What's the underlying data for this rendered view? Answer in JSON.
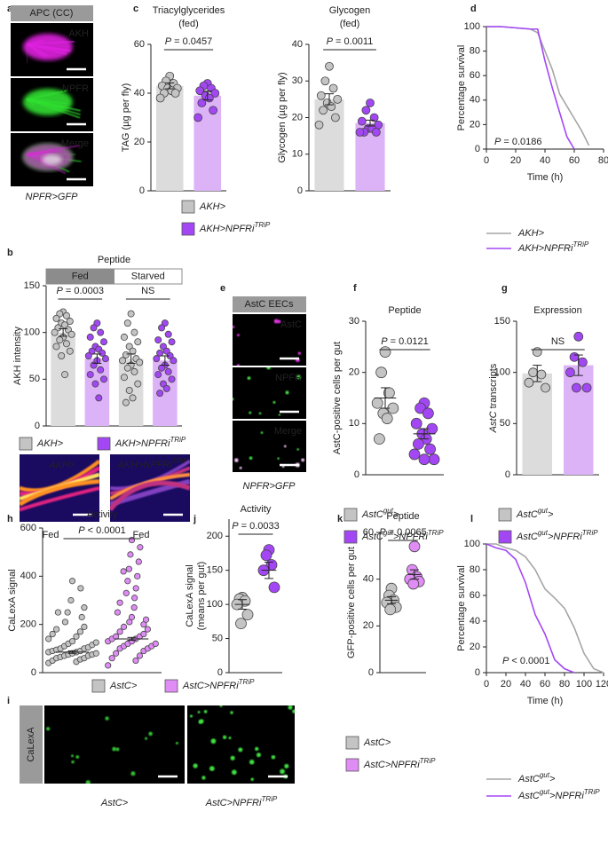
{
  "image_panels": [
    {
      "panel": "a",
      "header": "APC (CC)",
      "channels": [
        "AKH",
        "NPFR",
        "Merge"
      ],
      "caption": "NPFR>GFP"
    },
    {
      "labels": [
        "AKH>",
        [
          "AKH>NPFRi",
          {
            "sup": "TRiP"
          }
        ]
      ],
      "captions": [
        "Fed",
        "Fed"
      ]
    },
    {
      "panel": "e",
      "header": "AstC EECs",
      "channels": [
        "AstC",
        "NPFR",
        "Merge"
      ],
      "caption": "NPFR>GFP"
    },
    {
      "panel": "i",
      "side_label": "CaLexA",
      "captions": [
        "AstC>",
        [
          "AstC>NPFRi",
          {
            "sup": "TRiP"
          }
        ]
      ]
    }
  ],
  "chart_data": [
    {
      "panel": "c",
      "type": "bar",
      "title": [
        "Triacylglycerides",
        "(fed)"
      ],
      "ylabel": "TAG (µg per fly)",
      "ylim": [
        0,
        60
      ],
      "yticks": [
        0,
        20,
        40,
        60
      ],
      "categories": [
        null
      ],
      "comparisons": [
        [
          {
            "i": "P"
          },
          " = 0.0457"
        ]
      ],
      "series": [
        {
          "name": "AKH>",
          "color": "#c4c4c4",
          "bar_color": "#dcdcdc",
          "values": [
            43
          ],
          "errors": [
            1.2
          ],
          "points": [
            [
              47,
              45,
              44,
              43,
              42,
              42,
              41,
              40,
              40,
              38
            ]
          ]
        },
        {
          "name": [
            "AKH>NPFRi",
            {
              "sup": "TRiP"
            }
          ],
          "color": "#a347f5",
          "bar_color": "#ddb3f8",
          "values": [
            39
          ],
          "errors": [
            1.8
          ],
          "points": [
            [
              44,
              43,
              42,
              41,
              40,
              39,
              38,
              36,
              33,
              30
            ]
          ]
        }
      ]
    },
    {
      "type": "bar",
      "title": [
        "Glycogen",
        "(fed)"
      ],
      "ylabel": "Glycogen (µg per fly)",
      "ylim": [
        0,
        40
      ],
      "yticks": [
        0,
        10,
        20,
        30,
        40
      ],
      "categories": [
        null
      ],
      "comparisons": [
        [
          {
            "i": "P"
          },
          " = 0.0011"
        ]
      ],
      "series": [
        {
          "color": "#c4c4c4",
          "bar_color": "#dcdcdc",
          "values": [
            25
          ],
          "errors": [
            1.5
          ],
          "points": [
            [
              34,
              30,
              28,
              26,
              25,
              24,
              23,
              22,
              20,
              18
            ]
          ]
        },
        {
          "color": "#a347f5",
          "bar_color": "#ddb3f8",
          "values": [
            18.5
          ],
          "errors": [
            0.8
          ],
          "points": [
            [
              24,
              22,
              20,
              19,
              18,
              17,
              17,
              16,
              16,
              16
            ]
          ]
        }
      ]
    },
    {
      "panel": "d",
      "type": "line",
      "ylabel": "Percentage survival",
      "xlabel": "Time (h)",
      "xlim": [
        0,
        80
      ],
      "xticks": [
        0,
        20,
        40,
        60,
        80
      ],
      "ylim": [
        0,
        100
      ],
      "yticks": [
        0,
        20,
        40,
        60,
        80,
        100
      ],
      "annotation": [
        {
          "i": "P"
        },
        " = 0.0186"
      ],
      "x": [
        0,
        10,
        20,
        30,
        35,
        40,
        45,
        50,
        55,
        60,
        65,
        70
      ],
      "series": [
        {
          "name": "AKH>",
          "color": "#a6a6a6",
          "values": [
            100,
            100,
            99,
            98,
            95,
            80,
            65,
            45,
            35,
            25,
            15,
            3
          ]
        },
        {
          "name": [
            "AKH>NPFRi",
            {
              "sup": "TRiP"
            }
          ],
          "color": "#a347f5",
          "values": [
            100,
            100,
            99,
            98,
            98,
            72,
            50,
            30,
            10,
            0,
            null,
            null
          ]
        }
      ]
    },
    {
      "panel": "b",
      "type": "bar",
      "title": "Peptide",
      "ylabel": "AKH intensity",
      "ylim": [
        0,
        150
      ],
      "yticks": [
        0,
        50,
        100,
        150
      ],
      "categories": [
        "Fed",
        "Starved"
      ],
      "comparisons": [
        [
          {
            "i": "P"
          },
          " = 0.0003"
        ],
        "NS"
      ],
      "series": [
        {
          "name": "AKH>",
          "color": "#c4c4c4",
          "bar_color": "#dcdcdc",
          "values": [
            100,
            72
          ],
          "errors": [
            4,
            5
          ],
          "points": [
            [
              122,
              120,
              118,
              115,
              112,
              110,
              108,
              105,
              103,
              100,
              98,
              95,
              92,
              88,
              85,
              80,
              75,
              55
            ],
            [
              120,
              110,
              100,
              95,
              90,
              85,
              80,
              76,
              72,
              70,
              68,
              65,
              62,
              58,
              52,
              45,
              38,
              30,
              25
            ]
          ]
        },
        {
          "name": [
            "AKH>NPFRi",
            {
              "sup": "TRiP"
            }
          ],
          "color": "#a347f5",
          "bar_color": "#ddb3f8",
          "values": [
            72,
            70
          ],
          "errors": [
            5,
            5
          ],
          "points": [
            [
              110,
              105,
              100,
              95,
              90,
              85,
              82,
              80,
              78,
              75,
              72,
              70,
              65,
              60,
              55,
              50,
              45,
              30
            ],
            [
              110,
              105,
              98,
              92,
              90,
              85,
              80,
              78,
              75,
              72,
              70,
              65,
              62,
              58,
              55,
              50,
              45,
              40,
              35
            ]
          ]
        }
      ]
    },
    {
      "panel": "f",
      "type": "strip",
      "title": "Peptide",
      "ylabel": "AstC-positive cells per gut",
      "ylim": [
        0,
        30
      ],
      "yticks": [
        0,
        10,
        20,
        30
      ],
      "categories": [
        null
      ],
      "comparisons": [
        [
          {
            "i": "P"
          },
          " = 0.0121"
        ]
      ],
      "series": [
        {
          "name": [
            "AstC",
            {
              "sup": "gut"
            },
            ">"
          ],
          "color": "#c4c4c4",
          "values": [
            15
          ],
          "errors": [
            2
          ],
          "points": [
            [
              24,
              20,
              16,
              14,
              13,
              12,
              11,
              7
            ]
          ]
        },
        {
          "name": [
            "AstC",
            {
              "sup": "gut"
            },
            ">NPFRi",
            {
              "sup": "TRiP"
            }
          ],
          "color": "#a347f5",
          "values": [
            8
          ],
          "errors": [
            1
          ],
          "points": [
            [
              14,
              13,
              12,
              10,
              9,
              8,
              7,
              6,
              5,
              4,
              3,
              3
            ]
          ]
        }
      ]
    },
    {
      "panel": "g",
      "type": "bar",
      "title": "Expression",
      "ylabel": [
        {
          "i": "AstC"
        },
        " transcripts"
      ],
      "ylim": [
        0,
        150
      ],
      "yticks": [
        0,
        50,
        100,
        150
      ],
      "categories": [
        null
      ],
      "comparisons": [
        "NS"
      ],
      "series": [
        {
          "name": [
            "AstC",
            {
              "sup": "gut"
            },
            ">"
          ],
          "color": "#c4c4c4",
          "bar_color": "#dcdcdc",
          "values": [
            99
          ],
          "errors": [
            8
          ],
          "points": [
            [
              120,
              100,
              98,
              90,
              85
            ]
          ]
        },
        {
          "name": [
            "AstC",
            {
              "sup": "gut"
            },
            ">NPFRi",
            {
              "sup": "TRiP"
            }
          ],
          "color": "#a347f5",
          "bar_color": "#ddb3f8",
          "values": [
            107
          ],
          "errors": [
            10
          ],
          "points": [
            [
              135,
              115,
              110,
              100,
              85,
              85
            ]
          ]
        }
      ]
    },
    {
      "panel": "h",
      "type": "strip",
      "title": "Activity",
      "ylabel": "CaLexA signal",
      "ylim": [
        0,
        600
      ],
      "yticks": [
        0,
        200,
        400,
        600
      ],
      "categories": [
        null
      ],
      "comparisons": [
        [
          {
            "i": "P"
          },
          " < 0.0001"
        ]
      ],
      "series": [
        {
          "name": "AstC>",
          "color": "#c4c4c4",
          "values": [
            85
          ],
          "errors": [
            5
          ],
          "points": [
            [
              40,
              45,
              50,
              55,
              60,
              60,
              65,
              70,
              70,
              75,
              75,
              80,
              80,
              85,
              85,
              90,
              90,
              95,
              100,
              100,
              105,
              110,
              115,
              120,
              125,
              130,
              140,
              150,
              160,
              170,
              180,
              190,
              210,
              230,
              250,
              270,
              300,
              350,
              380,
              250
            ]
          ]
        },
        {
          "name": [
            "AstC>NPFRi",
            {
              "sup": "TRiP"
            }
          ],
          "color": "#df8cf5",
          "values": [
            140
          ],
          "errors": [
            6
          ],
          "points": [
            [
              30,
              50,
              60,
              70,
              80,
              90,
              100,
              100,
              110,
              110,
              120,
              120,
              130,
              130,
              140,
              140,
              150,
              150,
              160,
              170,
              180,
              190,
              200,
              210,
              220,
              230,
              250,
              270,
              290,
              310,
              330,
              350,
              380,
              400,
              430,
              460,
              490,
              520,
              550,
              420
            ]
          ]
        }
      ]
    },
    {
      "panel": "j",
      "type": "strip",
      "title": "Activity",
      "ylabel": [
        "CaLexA signal",
        "(means per gut)"
      ],
      "ylim": [
        0,
        225
      ],
      "yticks": [
        0,
        50,
        100,
        150,
        200
      ],
      "categories": [
        null
      ],
      "comparisons": [
        [
          {
            "i": "P"
          },
          " = 0.0033"
        ]
      ],
      "series": [
        {
          "color": "#c4c4c4",
          "values": [
            100
          ],
          "errors": [
            7
          ],
          "points": [
            [
              110,
              108,
              105,
              100,
              85,
              72
            ]
          ]
        },
        {
          "color": "#a347f5",
          "values": [
            150
          ],
          "errors": [
            12
          ],
          "points": [
            [
              180,
              172,
              158,
              150,
              125
            ]
          ]
        }
      ]
    },
    {
      "panel": "k",
      "type": "strip",
      "title": "Peptide",
      "ylabel": "GFP-positive cells per gut",
      "ylim": [
        0,
        60
      ],
      "yticks": [
        0,
        20,
        40,
        60
      ],
      "categories": [
        null
      ],
      "comparisons": [
        [
          {
            "i": "P"
          },
          " = 0.0065"
        ]
      ],
      "series": [
        {
          "name": "AstC>",
          "color": "#c4c4c4",
          "values": [
            31
          ],
          "errors": [
            1.5
          ],
          "points": [
            [
              36,
              33,
              31,
              30,
              28,
              27
            ]
          ]
        },
        {
          "name": [
            "AstC>NPFRi",
            {
              "sup": "TRiP"
            }
          ],
          "color": "#df8cf5",
          "values": [
            42
          ],
          "errors": [
            2
          ],
          "points": [
            [
              54,
              44,
              41,
              40,
              39,
              38
            ]
          ]
        }
      ]
    },
    {
      "panel": "l",
      "type": "line",
      "ylabel": "Percentage survival",
      "xlabel": "Time (h)",
      "xlim": [
        0,
        120
      ],
      "xticks": [
        0,
        20,
        40,
        60,
        80,
        100,
        120
      ],
      "ylim": [
        0,
        100
      ],
      "yticks": [
        0,
        20,
        40,
        60,
        80,
        100
      ],
      "annotation": [
        {
          "i": "P"
        },
        " < 0.0001"
      ],
      "x": [
        0,
        10,
        20,
        30,
        40,
        50,
        60,
        70,
        80,
        90,
        100,
        110,
        120
      ],
      "series": [
        {
          "name": [
            "AstC",
            {
              "sup": "gut"
            },
            ">"
          ],
          "color": "#a6a6a6",
          "values": [
            100,
            100,
            97,
            95,
            90,
            80,
            65,
            58,
            50,
            35,
            15,
            3,
            0
          ]
        },
        {
          "name": [
            "AstC",
            {
              "sup": "gut"
            },
            ">NPFRi",
            {
              "sup": "TRiP"
            }
          ],
          "color": "#a347f5",
          "values": [
            100,
            97,
            95,
            88,
            70,
            45,
            30,
            10,
            3,
            0,
            null,
            null,
            null
          ]
        }
      ]
    }
  ]
}
